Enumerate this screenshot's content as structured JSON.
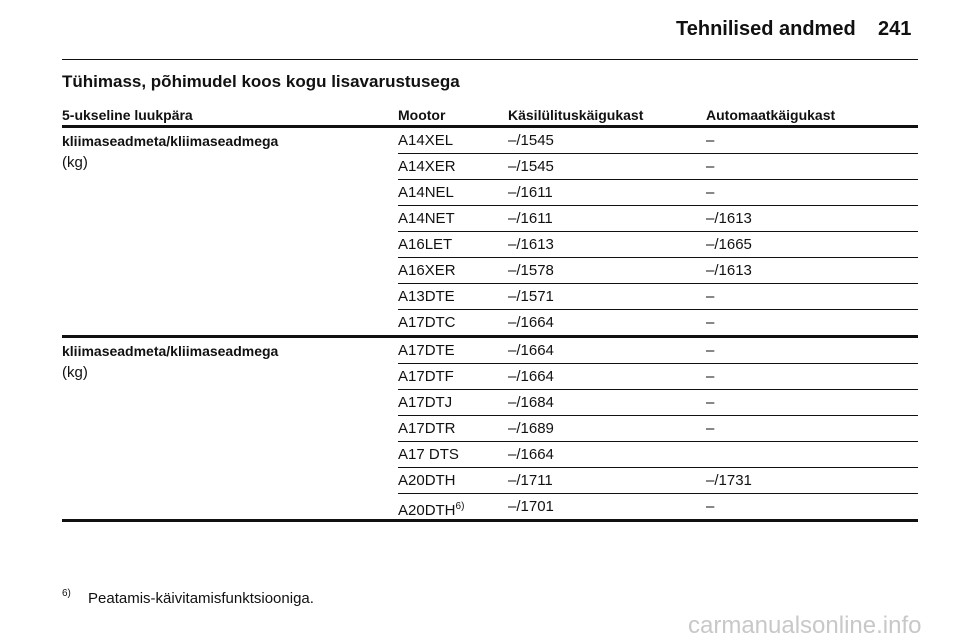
{
  "header": {
    "title": "Tehnilised andmed",
    "page": "241"
  },
  "section_title": "Tühimass, põhimudel koos kogu lisavarustusega",
  "table": {
    "columns": [
      "5-ukseline luukpära",
      "Mootor",
      "Käsilülituskäigukast",
      "Automaatkäigukast"
    ],
    "groups": [
      {
        "label": "kliimaseadmeta/kliimaseadmega",
        "unit": "(kg)",
        "rows": [
          {
            "engine": "A14XEL",
            "manual": "–/1545",
            "automatic": "–"
          },
          {
            "engine": "A14XER",
            "manual": "–/1545",
            "automatic": "–"
          },
          {
            "engine": "A14NEL",
            "manual": "–/1611",
            "automatic": "–"
          },
          {
            "engine": "A14NET",
            "manual": "–/1611",
            "automatic": "–/1613"
          },
          {
            "engine": "A16LET",
            "manual": "–/1613",
            "automatic": "–/1665"
          },
          {
            "engine": "A16XER",
            "manual": "–/1578",
            "automatic": "–/1613"
          },
          {
            "engine": "A13DTE",
            "manual": "–/1571",
            "automatic": "–"
          },
          {
            "engine": "A17DTC",
            "manual": "–/1664",
            "automatic": "–"
          }
        ]
      },
      {
        "label": "kliimaseadmeta/kliimaseadmega",
        "unit": "(kg)",
        "rows": [
          {
            "engine": "A17DTE",
            "manual": "–/1664",
            "automatic": "–"
          },
          {
            "engine": "A17DTF",
            "manual": "–/1664",
            "automatic": "–"
          },
          {
            "engine": "A17DTJ",
            "manual": "–/1684",
            "automatic": "–"
          },
          {
            "engine": "A17DTR",
            "manual": "–/1689",
            "automatic": "–"
          },
          {
            "engine": "A17 DTS",
            "manual": "–/1664"
          },
          {
            "engine": "A20DTH",
            "manual": "–/1711",
            "automatic": "–/1731"
          },
          {
            "engine": "A20DTH",
            "note": "6)",
            "manual": "–/1701",
            "automatic": "–"
          }
        ]
      }
    ]
  },
  "footnote": {
    "mark": "6)",
    "text": "Peatamis-käivitamisfunktsiooniga."
  },
  "watermark": "carmanualsonline.info"
}
